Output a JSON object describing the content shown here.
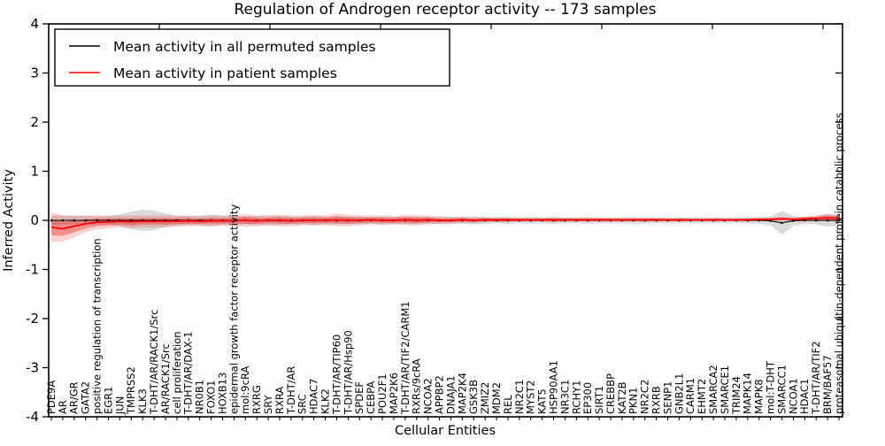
{
  "figure": {
    "title": "Regulation of Androgen receptor activity -- 173 samples",
    "sample_count": "173"
  },
  "axes": {
    "xlabel": "Cellular Entities",
    "ylabel": "Inferred Activity",
    "y_ticks": [
      4,
      3,
      2,
      1,
      0,
      -1,
      -2,
      -3,
      -4
    ],
    "ylim": [
      -4,
      4
    ]
  },
  "legend": {
    "entries": [
      {
        "label": "Mean activity in all permuted samples",
        "color": "#000000"
      },
      {
        "label": "Mean activity in patient samples",
        "color": "#ff0000"
      }
    ]
  },
  "colors": {
    "permuted_line": "#000000",
    "permuted_band": "rgba(110,110,110,0.25)",
    "patient_line": "#ff0000",
    "patient_band_outer": "rgba(255,0,0,0.18)",
    "patient_band_inner": "rgba(230,0,0,0.32)",
    "frame": "#000000",
    "background": "#ffffff"
  },
  "chart_data": {
    "type": "line",
    "title": "Regulation of Androgen receptor activity -- 173 samples",
    "xlabel": "Cellular Entities",
    "ylabel": "Inferred Activity",
    "ylim": [
      -4,
      4
    ],
    "grid": false,
    "legend_position": "upper left",
    "categories": [
      "PDE9A",
      "AR",
      "AR/GR",
      "GATA2",
      "positive regulation of transcription",
      "EGR1",
      "JUN",
      "TMPRSS2",
      "KLK3",
      "T-DHT/AR/RACK1/Src",
      "AR/RACK1/Src",
      "cell proliferation",
      "T-DHT/AR/DAX-1",
      "NR0B1",
      "FOXO1",
      "HOXB13",
      "epidermal growth factor receptor activity",
      "mol:9cRA",
      "RXRG",
      "SRY",
      "RXRA",
      "T-DHT/AR",
      "SRC",
      "HDAC7",
      "KLK2",
      "T-DHT/AR/TIP60",
      "T-DHT/AR/Hsp90",
      "SPDEF",
      "CEBPA",
      "POU2F1",
      "MAP2K6",
      "T-DHT/AR/TIF2/CARM1",
      "RXRs/9cRA",
      "NCOA2",
      "APPBP2",
      "DNAJA1",
      "MAP2K4",
      "GSK3B",
      "ZMIZ2",
      "MDM2",
      "REL",
      "NR2C1",
      "MYST2",
      "KAT5",
      "HSP90AA1",
      "NR3C1",
      "RCHY1",
      "EP300",
      "SIRT1",
      "CREBBP",
      "KAT2B",
      "PKN1",
      "NR2C2",
      "RXRB",
      "SENP1",
      "GNB2L1",
      "CARM1",
      "EHMT2",
      "SMARCA2",
      "SMARCE1",
      "TRIM24",
      "MAPK14",
      "MAPK8",
      "mol:T-DHT",
      "SMARCC1",
      "NCOA1",
      "HDAC1",
      "T-DHT/AR/TIF2",
      "BRM/BAF57",
      "proteasomal ubiquitin-dependent protein catabolic process"
    ],
    "series": [
      {
        "name": "Mean activity in all permuted samples",
        "color": "#000000",
        "values": [
          0,
          0,
          0,
          0,
          0,
          0,
          0,
          0,
          0,
          0,
          0,
          0,
          0,
          0,
          0,
          0,
          0,
          0,
          0,
          0,
          0,
          0,
          0,
          0,
          0,
          0,
          0,
          0,
          0,
          0,
          0,
          0,
          0,
          0,
          0,
          0,
          0,
          0,
          0,
          0,
          0,
          0,
          0,
          0,
          0,
          0,
          0,
          0,
          0,
          0,
          0,
          0,
          0,
          0,
          0,
          0,
          0,
          0,
          0,
          0,
          0,
          0,
          0,
          -0.01,
          -0.05,
          -0.01,
          0,
          0,
          0,
          0
        ],
        "band_halfwidth": [
          0.1,
          0.1,
          0.09,
          0.09,
          0.08,
          0.09,
          0.12,
          0.18,
          0.22,
          0.2,
          0.14,
          0.1,
          0.09,
          0.1,
          0.12,
          0.1,
          0.09,
          0.08,
          0.09,
          0.1,
          0.09,
          0.08,
          0.08,
          0.09,
          0.08,
          0.08,
          0.07,
          0.08,
          0.07,
          0.08,
          0.07,
          0.08,
          0.07,
          0.07,
          0.08,
          0.07,
          0.07,
          0.08,
          0.07,
          0.06,
          0.07,
          0.06,
          0.07,
          0.06,
          0.07,
          0.06,
          0.06,
          0.07,
          0.06,
          0.06,
          0.06,
          0.07,
          0.06,
          0.06,
          0.06,
          0.06,
          0.06,
          0.06,
          0.06,
          0.06,
          0.06,
          0.06,
          0.07,
          0.09,
          0.24,
          0.1,
          0.07,
          0.08,
          0.13,
          0.1
        ]
      },
      {
        "name": "Mean activity in patient samples",
        "color": "#ff0000",
        "values": [
          -0.14,
          -0.17,
          -0.12,
          -0.07,
          -0.04,
          -0.03,
          -0.02,
          -0.03,
          -0.02,
          -0.02,
          -0.02,
          -0.02,
          -0.01,
          -0.02,
          -0.01,
          -0.01,
          -0.01,
          0,
          -0.01,
          0,
          0,
          -0.01,
          0,
          0,
          0,
          0.01,
          0,
          0,
          0.01,
          0,
          0,
          0.01,
          0,
          0.01,
          0,
          0,
          0.01,
          0,
          0.01,
          0.01,
          0.01,
          0.01,
          0.01,
          0.01,
          0.01,
          0.01,
          0.01,
          0.01,
          0.01,
          0.01,
          0.01,
          0.01,
          0.01,
          0.01,
          0.01,
          0.01,
          0.01,
          0.01,
          0.01,
          0.01,
          0.01,
          0.01,
          0.02,
          0.02,
          0.03,
          0.02,
          0.03,
          0.04,
          0.05,
          0.04
        ],
        "band_halfwidth": [
          0.3,
          0.27,
          0.22,
          0.17,
          0.14,
          0.13,
          0.12,
          0.13,
          0.12,
          0.12,
          0.12,
          0.11,
          0.11,
          0.1,
          0.11,
          0.1,
          0.11,
          0.13,
          0.11,
          0.1,
          0.12,
          0.11,
          0.1,
          0.11,
          0.1,
          0.13,
          0.12,
          0.1,
          0.09,
          0.1,
          0.09,
          0.1,
          0.11,
          0.09,
          0.07,
          0.07,
          0.06,
          0.06,
          0.05,
          0.05,
          0.05,
          0.04,
          0.04,
          0.04,
          0.05,
          0.04,
          0.04,
          0.04,
          0.04,
          0.04,
          0.04,
          0.04,
          0.04,
          0.04,
          0.03,
          0.04,
          0.03,
          0.03,
          0.04,
          0.03,
          0.03,
          0.04,
          0.03,
          0.04,
          0.04,
          0.04,
          0.05,
          0.06,
          0.08,
          0.07
        ]
      }
    ]
  }
}
